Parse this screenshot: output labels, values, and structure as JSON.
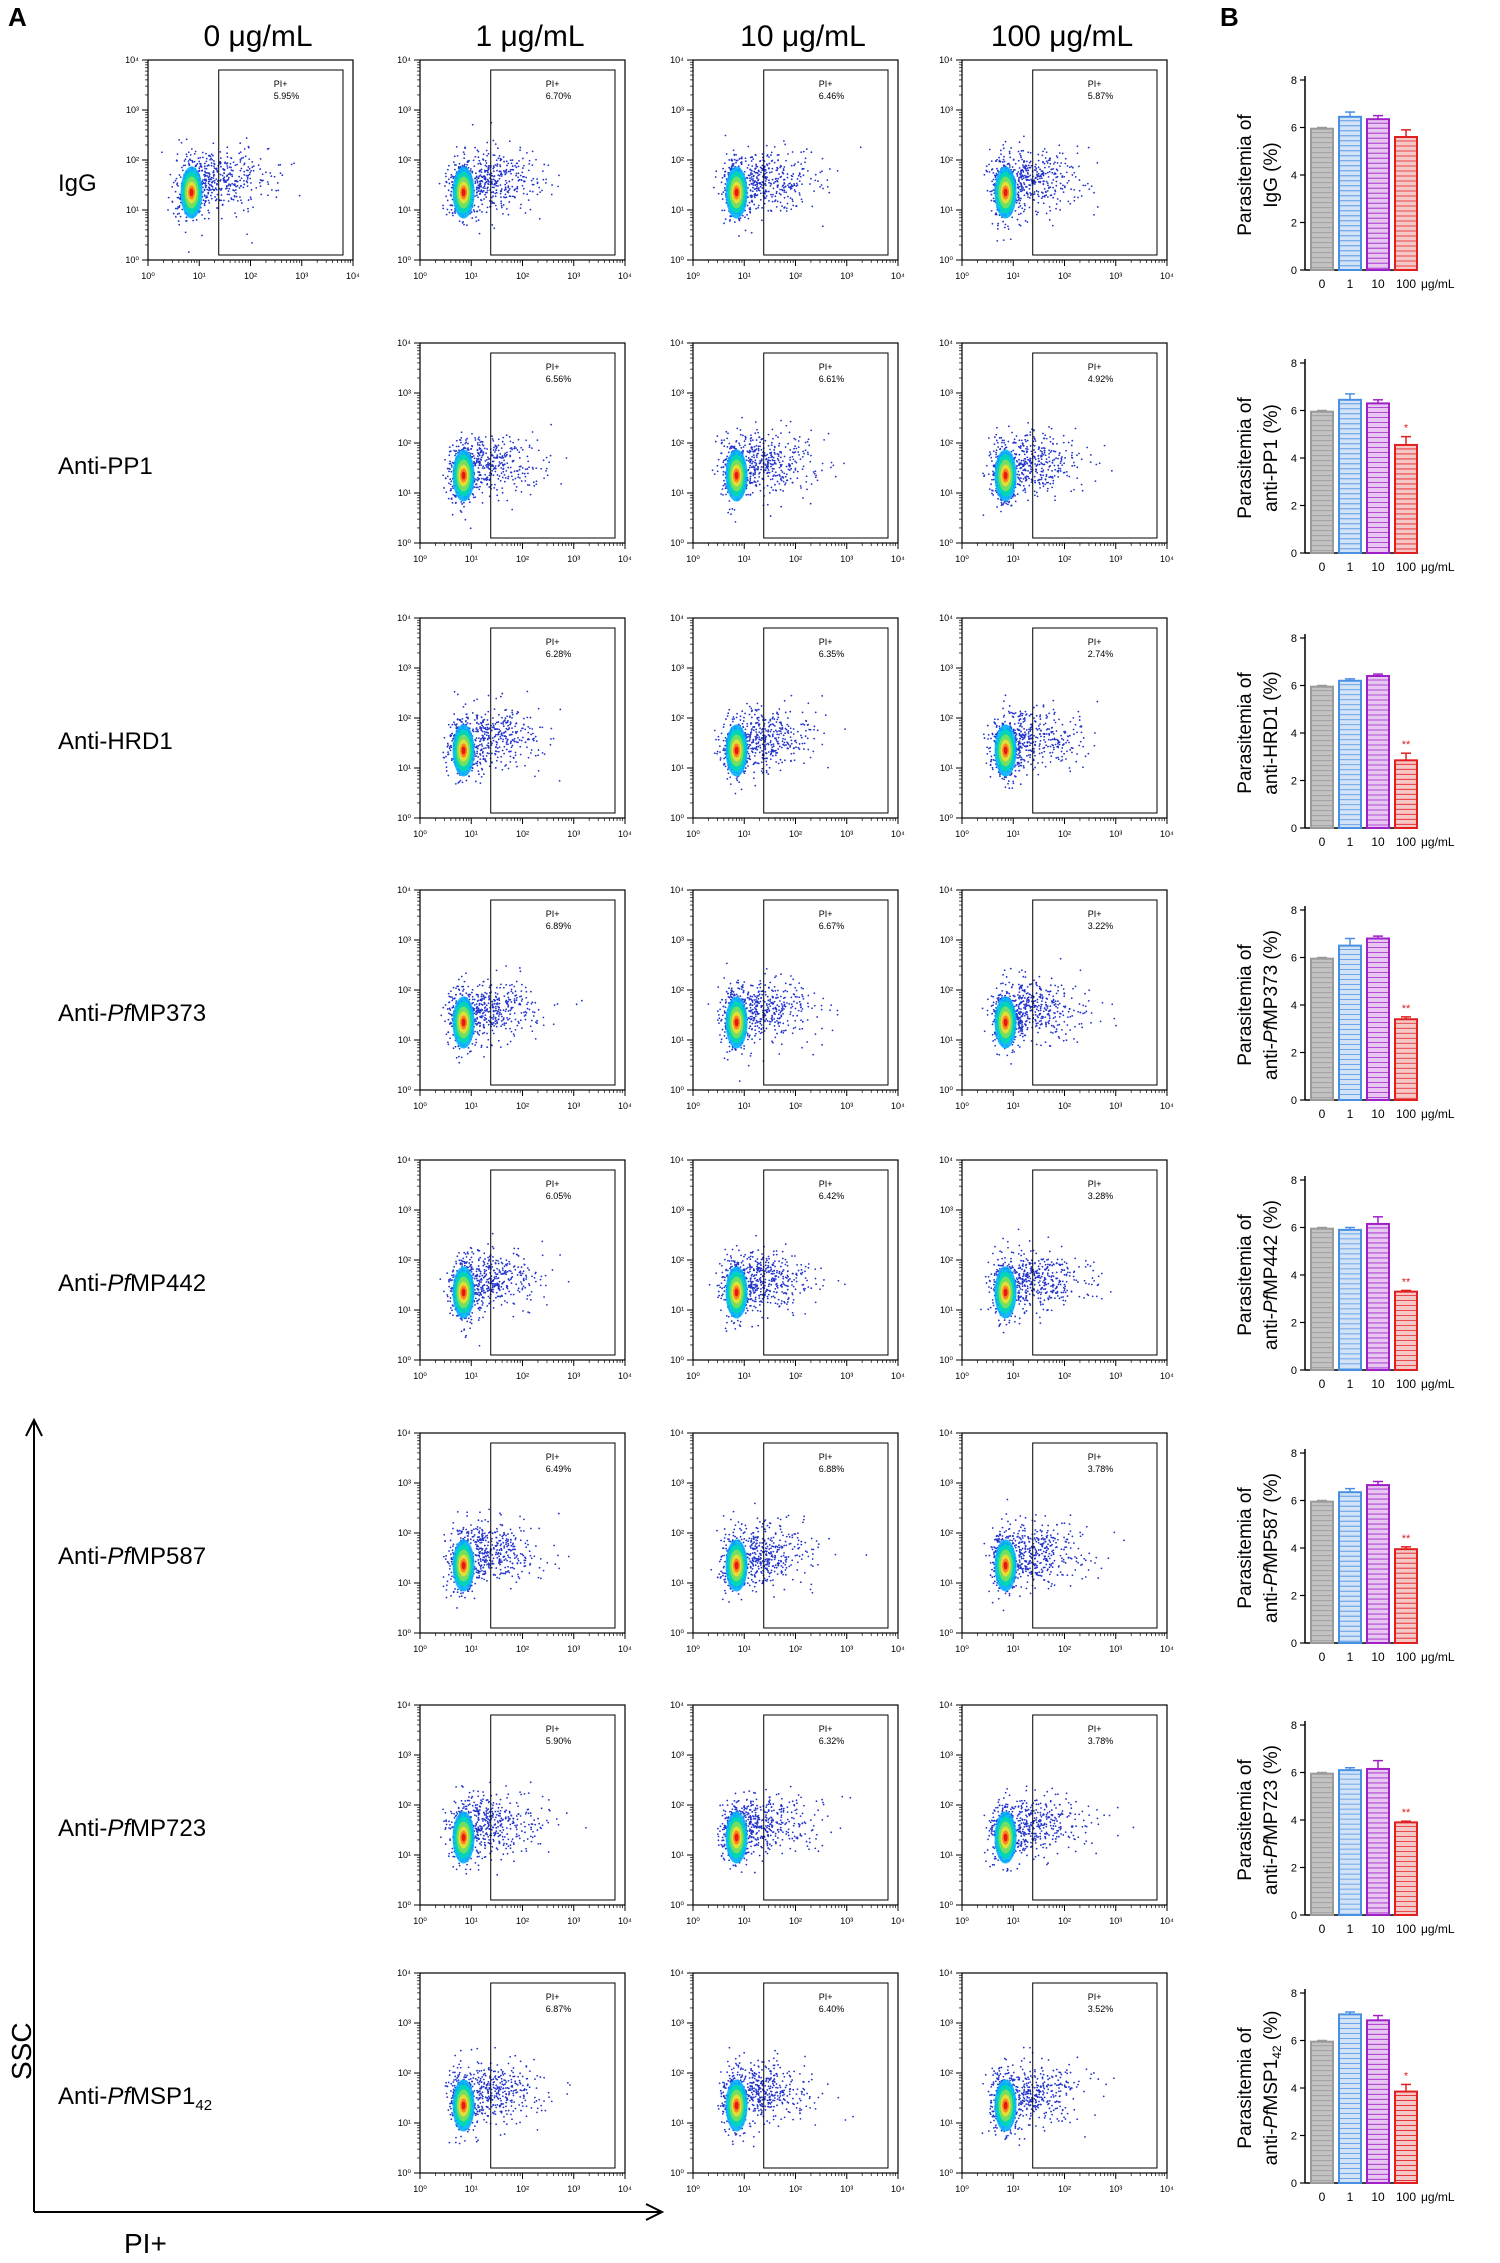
{
  "panels": {
    "a": "A",
    "b": "B"
  },
  "column_headers": [
    "0 μg/mL",
    "1 μg/mL",
    "10 μg/mL",
    "100 μg/mL"
  ],
  "axes": {
    "y": "SSC",
    "x": "PI+"
  },
  "flow": {
    "gate_label": "PI+",
    "tick_labels": [
      "10⁰",
      "10¹",
      "10²",
      "10³",
      "10⁴"
    ]
  },
  "rows": [
    {
      "label_pre": "IgG",
      "label_italic": "",
      "label_post": "",
      "label_sub": "",
      "gates": [
        "5.95%",
        "6.70%",
        "6.46%",
        "5.87%"
      ]
    },
    {
      "label_pre": "Anti-PP1",
      "label_italic": "",
      "label_post": "",
      "label_sub": "",
      "gates": [
        "",
        "6.56%",
        "6.61%",
        "4.92%"
      ]
    },
    {
      "label_pre": "Anti-HRD1",
      "label_italic": "",
      "label_post": "",
      "label_sub": "",
      "gates": [
        "",
        "6.28%",
        "6.35%",
        "2.74%"
      ]
    },
    {
      "label_pre": "Anti-",
      "label_italic": "Pf",
      "label_post": "MP373",
      "label_sub": "",
      "gates": [
        "",
        "6.89%",
        "6.67%",
        "3.22%"
      ]
    },
    {
      "label_pre": "Anti-",
      "label_italic": "Pf",
      "label_post": "MP442",
      "label_sub": "",
      "gates": [
        "",
        "6.05%",
        "6.42%",
        "3.28%"
      ]
    },
    {
      "label_pre": "Anti-",
      "label_italic": "Pf",
      "label_post": "MP587",
      "label_sub": "",
      "gates": [
        "",
        "6.49%",
        "6.88%",
        "3.78%"
      ]
    },
    {
      "label_pre": "Anti-",
      "label_italic": "Pf",
      "label_post": "MP723",
      "label_sub": "",
      "gates": [
        "",
        "5.90%",
        "6.32%",
        "3.78%"
      ]
    },
    {
      "label_pre": "Anti-",
      "label_italic": "Pf",
      "label_post": "MSP1",
      "label_sub": "42",
      "gates": [
        "",
        "6.87%",
        "6.40%",
        "3.52%"
      ]
    }
  ],
  "colors": {
    "bar_0": "#9a9a9a",
    "bar_1": "#4a90e2",
    "bar_10": "#a020c8",
    "bar_100": "#e02020",
    "sig": "#e02020",
    "dot_blue": "#2233cc"
  },
  "chart_data": [
    {
      "type": "bar",
      "title": "",
      "ylabel_line1": "Parasitemia of",
      "ylabel_pre": "IgG (%)",
      "ylabel_italic": "",
      "ylabel_post": "",
      "ylabel_sub": "",
      "ylabel_end": "",
      "categories": [
        "0",
        "1",
        "10",
        "100"
      ],
      "unit": "μg/mL",
      "values": [
        5.95,
        6.45,
        6.35,
        5.6
      ],
      "errors": [
        0.05,
        0.2,
        0.15,
        0.3
      ],
      "sig": [
        "",
        "",
        "",
        ""
      ],
      "ylim": [
        0,
        8
      ],
      "yticks": [
        0,
        2,
        4,
        6,
        8
      ]
    },
    {
      "type": "bar",
      "title": "",
      "ylabel_line1": "Parasitemia of",
      "ylabel_pre": "anti-PP1 (%)",
      "ylabel_italic": "",
      "ylabel_post": "",
      "ylabel_sub": "",
      "ylabel_end": "",
      "categories": [
        "0",
        "1",
        "10",
        "100"
      ],
      "unit": "μg/mL",
      "values": [
        5.95,
        6.45,
        6.3,
        4.55
      ],
      "errors": [
        0.05,
        0.25,
        0.15,
        0.35
      ],
      "sig": [
        "",
        "",
        "",
        "*"
      ],
      "ylim": [
        0,
        8
      ],
      "yticks": [
        0,
        2,
        4,
        6,
        8
      ]
    },
    {
      "type": "bar",
      "title": "",
      "ylabel_line1": "Parasitemia of",
      "ylabel_pre": "anti-HRD1 (%)",
      "ylabel_italic": "",
      "ylabel_post": "",
      "ylabel_sub": "",
      "ylabel_end": "",
      "categories": [
        "0",
        "1",
        "10",
        "100"
      ],
      "unit": "μg/mL",
      "values": [
        5.95,
        6.2,
        6.4,
        2.85
      ],
      "errors": [
        0.05,
        0.08,
        0.08,
        0.3
      ],
      "sig": [
        "",
        "",
        "",
        "**"
      ],
      "ylim": [
        0,
        8
      ],
      "yticks": [
        0,
        2,
        4,
        6,
        8
      ]
    },
    {
      "type": "bar",
      "title": "",
      "ylabel_line1": "Parasitemia of",
      "ylabel_pre": "anti-",
      "ylabel_italic": "Pf",
      "ylabel_post": "MP373",
      "ylabel_sub": "",
      "ylabel_end": " (%)",
      "categories": [
        "0",
        "1",
        "10",
        "100"
      ],
      "unit": "μg/mL",
      "values": [
        5.95,
        6.5,
        6.8,
        3.4
      ],
      "errors": [
        0.05,
        0.3,
        0.1,
        0.1
      ],
      "sig": [
        "",
        "",
        "",
        "**"
      ],
      "ylim": [
        0,
        8
      ],
      "yticks": [
        0,
        2,
        4,
        6,
        8
      ]
    },
    {
      "type": "bar",
      "title": "",
      "ylabel_line1": "Parasitemia of",
      "ylabel_pre": "anti-",
      "ylabel_italic": "Pf",
      "ylabel_post": "MP442",
      "ylabel_sub": "",
      "ylabel_end": " (%)",
      "categories": [
        "0",
        "1",
        "10",
        "100"
      ],
      "unit": "μg/mL",
      "values": [
        5.95,
        5.9,
        6.15,
        3.3
      ],
      "errors": [
        0.05,
        0.1,
        0.3,
        0.05
      ],
      "sig": [
        "",
        "",
        "",
        "**"
      ],
      "ylim": [
        0,
        8
      ],
      "yticks": [
        0,
        2,
        4,
        6,
        8
      ]
    },
    {
      "type": "bar",
      "title": "",
      "ylabel_line1": "Parasitemia of",
      "ylabel_pre": "anti-",
      "ylabel_italic": "Pf",
      "ylabel_post": "MP587",
      "ylabel_sub": "",
      "ylabel_end": " (%)",
      "categories": [
        "0",
        "1",
        "10",
        "100"
      ],
      "unit": "μg/mL",
      "values": [
        5.95,
        6.35,
        6.65,
        3.95
      ],
      "errors": [
        0.05,
        0.15,
        0.15,
        0.1
      ],
      "sig": [
        "",
        "",
        "",
        "**"
      ],
      "ylim": [
        0,
        8
      ],
      "yticks": [
        0,
        2,
        4,
        6,
        8
      ]
    },
    {
      "type": "bar",
      "title": "",
      "ylabel_line1": "Parasitemia of",
      "ylabel_pre": "anti-",
      "ylabel_italic": "Pf",
      "ylabel_post": "MP723",
      "ylabel_sub": "",
      "ylabel_end": " (%)",
      "categories": [
        "0",
        "1",
        "10",
        "100"
      ],
      "unit": "μg/mL",
      "values": [
        5.95,
        6.1,
        6.15,
        3.9
      ],
      "errors": [
        0.05,
        0.1,
        0.35,
        0.05
      ],
      "sig": [
        "",
        "",
        "",
        "**"
      ],
      "ylim": [
        0,
        8
      ],
      "yticks": [
        0,
        2,
        4,
        6,
        8
      ]
    },
    {
      "type": "bar",
      "title": "",
      "ylabel_line1": "Parasitemia of",
      "ylabel_pre": "anti-",
      "ylabel_italic": "Pf",
      "ylabel_post": "MSP1",
      "ylabel_sub": "42",
      "ylabel_end": " (%)",
      "categories": [
        "0",
        "1",
        "10",
        "100"
      ],
      "unit": "μg/mL",
      "values": [
        5.95,
        7.1,
        6.85,
        3.85
      ],
      "errors": [
        0.05,
        0.1,
        0.2,
        0.3
      ],
      "sig": [
        "",
        "",
        "",
        "*"
      ],
      "ylim": [
        0,
        8
      ],
      "yticks": [
        0,
        2,
        4,
        6,
        8
      ]
    }
  ]
}
